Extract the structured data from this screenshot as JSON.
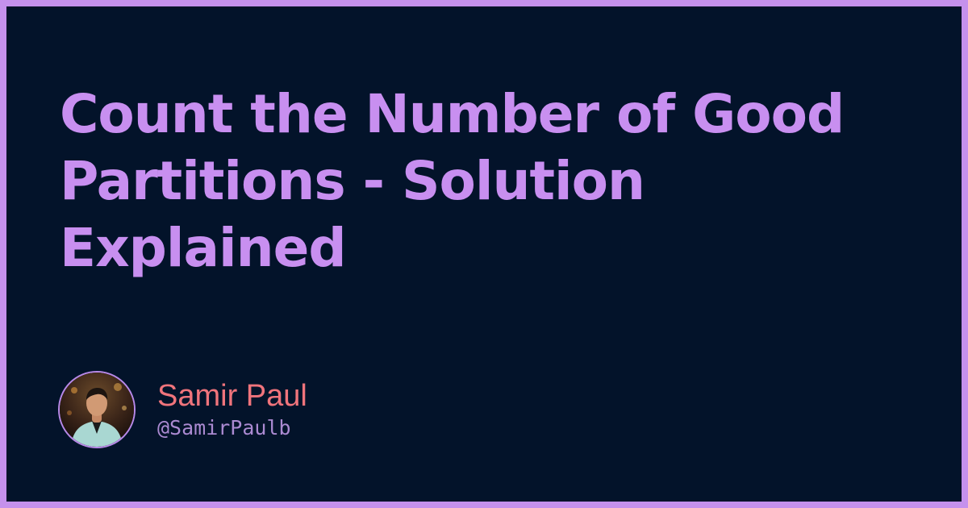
{
  "post": {
    "title": "Count the Number of Good Partitions - Solution Explained"
  },
  "author": {
    "name": "Samir Paul",
    "handle": "@SamirPaulb",
    "avatar_icon": "person-avatar-icon"
  },
  "colors": {
    "border": "#c591ec",
    "background": "#03132a",
    "title": "#c88ff0",
    "author_name": "#f0747c",
    "author_handle": "#ab8ad2"
  }
}
